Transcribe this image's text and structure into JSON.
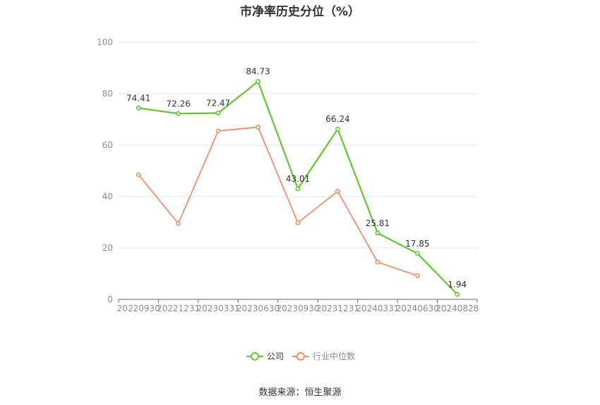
{
  "chart_data": {
    "type": "line",
    "title": "市净率历史分位（%）",
    "categories": [
      "20220930",
      "20221231",
      "20230331",
      "20230630",
      "20230930",
      "20231231",
      "20240331",
      "20240630",
      "20240828"
    ],
    "ylim": [
      0,
      100
    ],
    "yticks": [
      0,
      20,
      40,
      60,
      80,
      100
    ],
    "grid": true,
    "legend_position": "bottom",
    "series": [
      {
        "name": "公司",
        "color": "#5ec72b",
        "values": [
          74.41,
          72.26,
          72.47,
          84.73,
          43.01,
          66.24,
          25.81,
          17.85,
          1.94
        ],
        "labels": [
          "74.41",
          "72.26",
          "72.47",
          "84.73",
          "43.01",
          "66.24",
          "25.81",
          "17.85",
          "1.94"
        ]
      },
      {
        "name": "行业中位数",
        "color": "#f28c64",
        "values": [
          48.5,
          29.5,
          65.5,
          67.0,
          29.8,
          42.0,
          14.5,
          9.2,
          null
        ]
      }
    ],
    "source": "数据来源：恒生聚源"
  }
}
